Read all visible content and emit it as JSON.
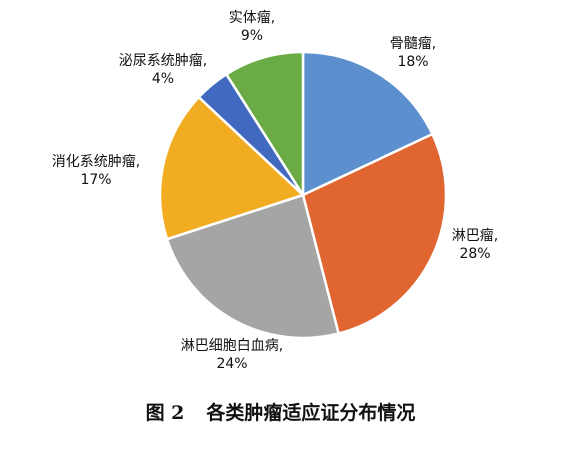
{
  "chart_data": {
    "type": "pie",
    "start_angle_deg": 0,
    "direction": "clockwise",
    "slices": [
      {
        "name": "骨髓瘤,",
        "value": 18,
        "label": "18%",
        "color": "#5b8fce"
      },
      {
        "name": "淋巴瘤,",
        "value": 28,
        "label": "28%",
        "color": "#e06530"
      },
      {
        "name": "淋巴细胞白血病,",
        "value": 24,
        "label": "24%",
        "color": "#a5a5a5"
      },
      {
        "name": "消化系统肿瘤,",
        "value": 17,
        "label": "17%",
        "color": "#f2ac22"
      },
      {
        "name": "泌尿系统肿瘤,",
        "value": 4,
        "label": "4%",
        "color": "#4169c0"
      },
      {
        "name": "实体瘤,",
        "value": 9,
        "label": "9%",
        "color": "#6aab46"
      }
    ]
  },
  "caption": {
    "figure_number": "图 2",
    "text": "各类肿瘤适应证分布情况"
  }
}
